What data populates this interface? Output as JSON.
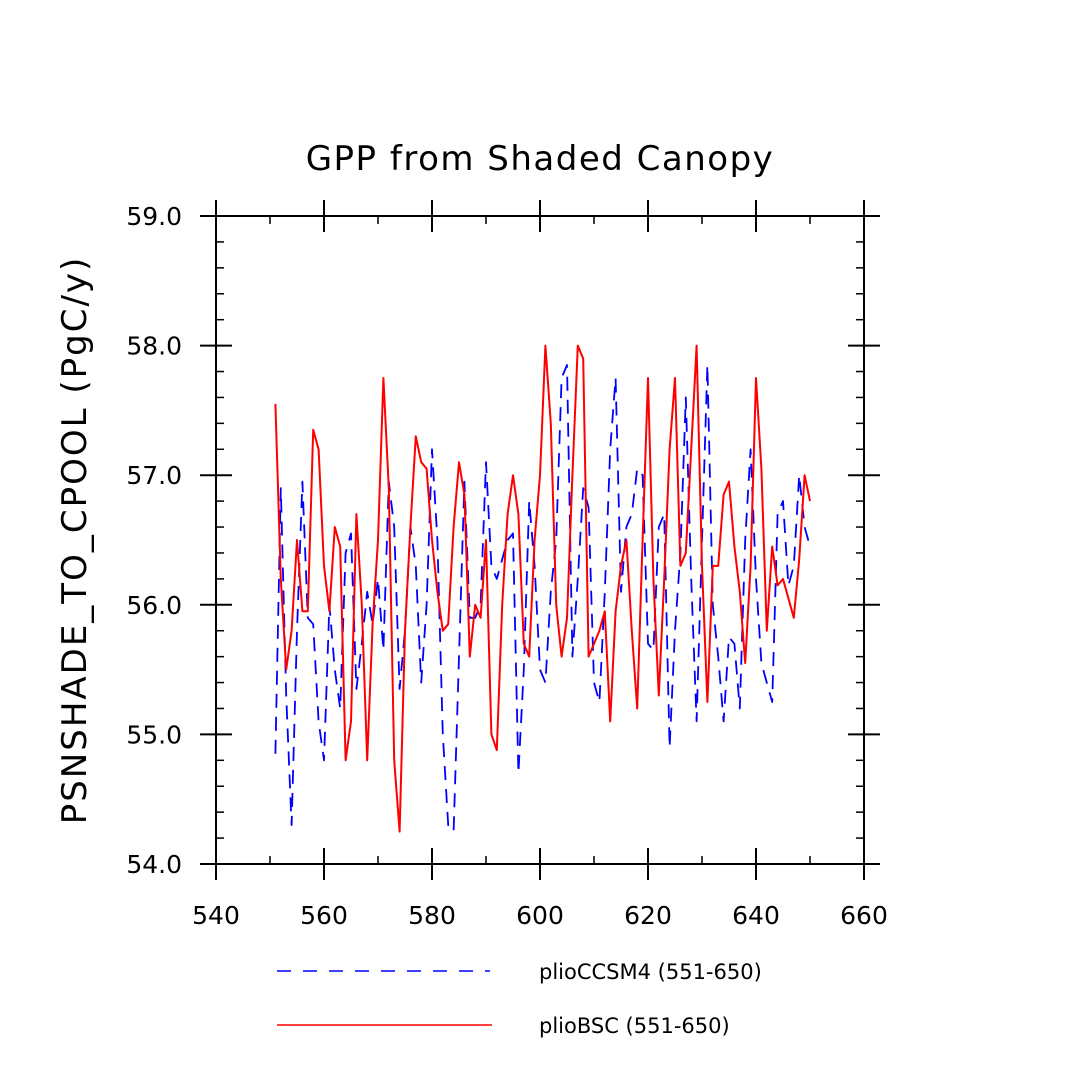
{
  "chart_data": {
    "type": "line",
    "title": "GPP from Shaded Canopy",
    "xlabel": "",
    "ylabel": "PSNSHADE_TO_CPOOL  (PgC/y)",
    "xlim": [
      540,
      660
    ],
    "ylim": [
      54.0,
      59.0
    ],
    "xticks": [
      540,
      560,
      580,
      600,
      620,
      640,
      660
    ],
    "yticks": [
      54.0,
      55.0,
      56.0,
      57.0,
      58.0,
      59.0
    ],
    "xtick_labels": [
      "540",
      "560",
      "580",
      "600",
      "620",
      "640",
      "660"
    ],
    "ytick_labels": [
      "54.0",
      "55.0",
      "56.0",
      "57.0",
      "58.0",
      "59.0"
    ],
    "x_minor_step": 10,
    "y_minor_step": 0.2,
    "legend_position": "bottom",
    "series": [
      {
        "name": "plioCCSM4 (551-650)",
        "color": "#0000ff",
        "style": "dashed",
        "x": [
          551,
          552,
          553,
          554,
          555,
          556,
          557,
          558,
          559,
          560,
          561,
          562,
          563,
          564,
          565,
          566,
          567,
          568,
          569,
          570,
          571,
          572,
          573,
          574,
          575,
          576,
          577,
          578,
          579,
          580,
          581,
          582,
          583,
          584,
          585,
          586,
          587,
          588,
          589,
          590,
          591,
          592,
          593,
          594,
          595,
          596,
          597,
          598,
          599,
          600,
          601,
          602,
          603,
          604,
          605,
          606,
          607,
          608,
          609,
          610,
          611,
          612,
          613,
          614,
          615,
          616,
          617,
          618,
          619,
          620,
          621,
          622,
          623,
          624,
          625,
          626,
          627,
          628,
          629,
          630,
          631,
          632,
          633,
          634,
          635,
          636,
          637,
          638,
          639,
          640,
          641,
          642,
          643,
          644,
          645,
          646,
          647,
          648,
          649,
          650
        ],
        "values": [
          54.85,
          56.9,
          55.3,
          54.3,
          55.8,
          56.95,
          55.9,
          55.85,
          55.1,
          54.8,
          56.0,
          55.5,
          55.2,
          56.4,
          56.55,
          55.35,
          55.7,
          56.1,
          55.85,
          56.2,
          55.65,
          56.95,
          56.6,
          55.35,
          55.8,
          56.6,
          56.3,
          55.4,
          56.0,
          57.2,
          56.5,
          55.0,
          54.3,
          54.25,
          55.6,
          56.95,
          55.9,
          55.9,
          56.0,
          57.1,
          56.3,
          56.2,
          56.35,
          56.5,
          56.55,
          54.7,
          55.5,
          56.8,
          56.3,
          55.5,
          55.4,
          56.1,
          56.5,
          57.75,
          57.85,
          55.6,
          56.2,
          56.9,
          56.75,
          55.4,
          55.25,
          56.1,
          57.2,
          57.75,
          56.1,
          56.6,
          56.7,
          57.05,
          57.0,
          55.7,
          55.65,
          56.6,
          56.7,
          54.9,
          55.8,
          56.4,
          57.6,
          56.2,
          55.1,
          56.5,
          57.85,
          56.0,
          55.6,
          55.1,
          55.75,
          55.7,
          55.2,
          56.5,
          57.2,
          56.2,
          55.55,
          55.4,
          55.25,
          56.7,
          56.8,
          56.15,
          56.3,
          57.0,
          56.6,
          56.45
        ]
      },
      {
        "name": "plioBSC (551-650)",
        "color": "#ff0000",
        "style": "solid",
        "x": [
          551,
          552,
          553,
          554,
          555,
          556,
          557,
          558,
          559,
          560,
          561,
          562,
          563,
          564,
          565,
          566,
          567,
          568,
          569,
          570,
          571,
          572,
          573,
          574,
          575,
          576,
          577,
          578,
          579,
          580,
          581,
          582,
          583,
          584,
          585,
          586,
          587,
          588,
          589,
          590,
          591,
          592,
          593,
          594,
          595,
          596,
          597,
          598,
          599,
          600,
          601,
          602,
          603,
          604,
          605,
          606,
          607,
          608,
          609,
          610,
          611,
          612,
          613,
          614,
          615,
          616,
          617,
          618,
          619,
          620,
          621,
          622,
          623,
          624,
          625,
          626,
          627,
          628,
          629,
          630,
          631,
          632,
          633,
          634,
          635,
          636,
          637,
          638,
          639,
          640,
          641,
          642,
          643,
          644,
          645,
          646,
          647,
          648,
          649,
          650
        ],
        "values": [
          57.55,
          56.2,
          55.5,
          55.8,
          56.5,
          55.95,
          55.95,
          57.35,
          57.2,
          56.3,
          55.95,
          56.6,
          56.45,
          54.8,
          55.1,
          56.7,
          56.0,
          54.8,
          55.85,
          56.5,
          57.75,
          56.9,
          54.8,
          54.25,
          55.8,
          56.6,
          57.3,
          57.1,
          57.05,
          56.5,
          56.1,
          55.8,
          55.85,
          56.6,
          57.1,
          56.85,
          55.6,
          56.0,
          55.9,
          56.5,
          55.0,
          54.88,
          56.0,
          56.7,
          57.0,
          56.7,
          55.7,
          55.6,
          56.5,
          57.0,
          58.0,
          57.4,
          56.0,
          55.6,
          55.9,
          57.0,
          58.0,
          57.9,
          55.6,
          55.7,
          55.8,
          55.95,
          55.1,
          55.95,
          56.3,
          56.5,
          55.8,
          55.2,
          56.5,
          57.75,
          56.2,
          55.3,
          56.2,
          57.2,
          57.75,
          56.3,
          56.4,
          57.2,
          58.0,
          56.3,
          55.25,
          56.3,
          56.3,
          56.85,
          56.95,
          56.45,
          56.1,
          55.55,
          56.3,
          57.75,
          57.05,
          55.8,
          56.45,
          56.15,
          56.2,
          56.05,
          55.9,
          56.35,
          57.0,
          56.8
        ]
      }
    ]
  }
}
